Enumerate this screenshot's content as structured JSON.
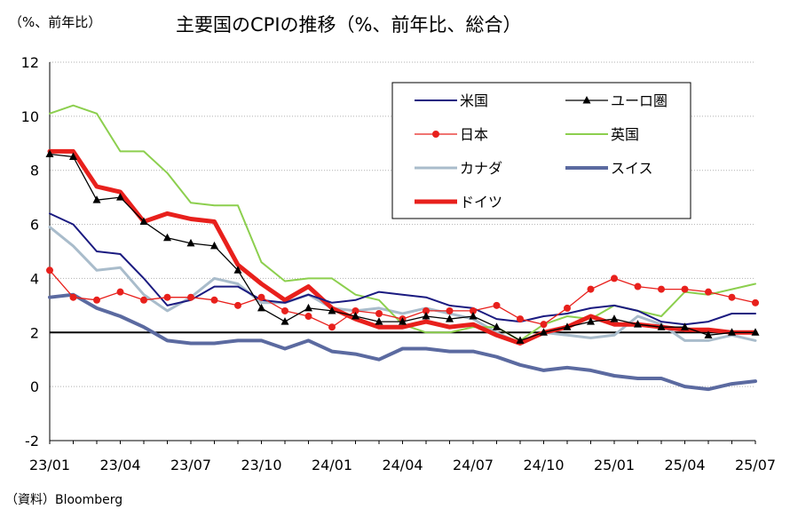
{
  "chart_data": {
    "type": "line",
    "title": "主要国のCPIの推移（%、前年比、総合）",
    "unit_label": "（%、前年比）",
    "source": "（資料）Bloomberg",
    "ylim": [
      -2,
      12
    ],
    "yticks": [
      -2,
      0,
      2,
      4,
      6,
      8,
      10,
      12
    ],
    "reference_line": 2,
    "grid": "horizontal dotted",
    "legend_position": "top-right",
    "x": [
      "23/01",
      "23/02",
      "23/03",
      "23/04",
      "23/05",
      "23/06",
      "23/07",
      "23/08",
      "23/09",
      "23/10",
      "23/11",
      "23/12",
      "24/01",
      "24/02",
      "24/03",
      "24/04",
      "24/05",
      "24/06",
      "24/07",
      "24/08",
      "24/09",
      "24/10",
      "24/11",
      "24/12",
      "25/01",
      "25/02",
      "25/03",
      "25/04",
      "25/05",
      "25/06",
      "25/07"
    ],
    "xtick_labels": [
      "23/01",
      "23/04",
      "23/07",
      "23/10",
      "24/01",
      "24/04",
      "24/07",
      "24/10",
      "25/01",
      "25/04",
      "25/07"
    ],
    "series": [
      {
        "name": "米国",
        "color": "#1a1a80",
        "width": 2,
        "marker": "none",
        "values": [
          6.4,
          6.0,
          5.0,
          4.9,
          4.0,
          3.0,
          3.2,
          3.7,
          3.7,
          3.2,
          3.1,
          3.4,
          3.1,
          3.2,
          3.5,
          3.4,
          3.3,
          3.0,
          2.9,
          2.5,
          2.4,
          2.6,
          2.7,
          2.9,
          3.0,
          2.8,
          2.4,
          2.3,
          2.4,
          2.7,
          2.7
        ]
      },
      {
        "name": "ユーロ圏",
        "color": "#000000",
        "width": 1.3,
        "marker": "triangle",
        "values": [
          8.6,
          8.5,
          6.9,
          7.0,
          6.1,
          5.5,
          5.3,
          5.2,
          4.3,
          2.9,
          2.4,
          2.9,
          2.8,
          2.6,
          2.4,
          2.4,
          2.6,
          2.5,
          2.6,
          2.2,
          1.7,
          2.0,
          2.2,
          2.4,
          2.5,
          2.3,
          2.2,
          2.2,
          1.9,
          2.0,
          2.0
        ]
      },
      {
        "name": "日本",
        "color": "#e8201c",
        "width": 1.3,
        "marker": "circle",
        "values": [
          4.3,
          3.3,
          3.2,
          3.5,
          3.2,
          3.3,
          3.3,
          3.2,
          3.0,
          3.3,
          2.8,
          2.6,
          2.2,
          2.8,
          2.7,
          2.5,
          2.8,
          2.8,
          2.8,
          3.0,
          2.5,
          2.3,
          2.9,
          3.6,
          4.0,
          3.7,
          3.6,
          3.6,
          3.5,
          3.3,
          3.1
        ]
      },
      {
        "name": "英国",
        "color": "#8ccf4e",
        "width": 2,
        "marker": "none",
        "values": [
          10.1,
          10.4,
          10.1,
          8.7,
          8.7,
          7.9,
          6.8,
          6.7,
          6.7,
          4.6,
          3.9,
          4.0,
          4.0,
          3.4,
          3.2,
          2.3,
          2.0,
          2.0,
          2.2,
          2.2,
          1.7,
          2.3,
          2.6,
          2.5,
          3.0,
          2.8,
          2.6,
          3.5,
          3.4,
          3.6,
          3.8
        ]
      },
      {
        "name": "カナダ",
        "color": "#a9bccb",
        "width": 3,
        "marker": "none",
        "values": [
          5.9,
          5.2,
          4.3,
          4.4,
          3.4,
          2.8,
          3.3,
          4.0,
          3.8,
          3.1,
          3.1,
          3.4,
          2.9,
          2.8,
          2.9,
          2.7,
          2.9,
          2.7,
          2.5,
          2.0,
          1.6,
          2.0,
          1.9,
          1.8,
          1.9,
          2.6,
          2.3,
          1.7,
          1.7,
          1.9,
          1.7
        ]
      },
      {
        "name": "スイス",
        "color": "#5b6aa0",
        "width": 4,
        "marker": "none",
        "values": [
          3.3,
          3.4,
          2.9,
          2.6,
          2.2,
          1.7,
          1.6,
          1.6,
          1.7,
          1.7,
          1.4,
          1.7,
          1.3,
          1.2,
          1.0,
          1.4,
          1.4,
          1.3,
          1.3,
          1.1,
          0.8,
          0.6,
          0.7,
          0.6,
          0.4,
          0.3,
          0.3,
          0.0,
          -0.1,
          0.1,
          0.2
        ]
      },
      {
        "name": "ドイツ",
        "color": "#e8201c",
        "width": 5,
        "marker": "none",
        "values": [
          8.7,
          8.7,
          7.4,
          7.2,
          6.1,
          6.4,
          6.2,
          6.1,
          4.5,
          3.8,
          3.2,
          3.7,
          2.9,
          2.5,
          2.2,
          2.2,
          2.4,
          2.2,
          2.3,
          1.9,
          1.6,
          2.0,
          2.2,
          2.6,
          2.3,
          2.3,
          2.2,
          2.1,
          2.1,
          2.0,
          2.0
        ]
      }
    ]
  }
}
